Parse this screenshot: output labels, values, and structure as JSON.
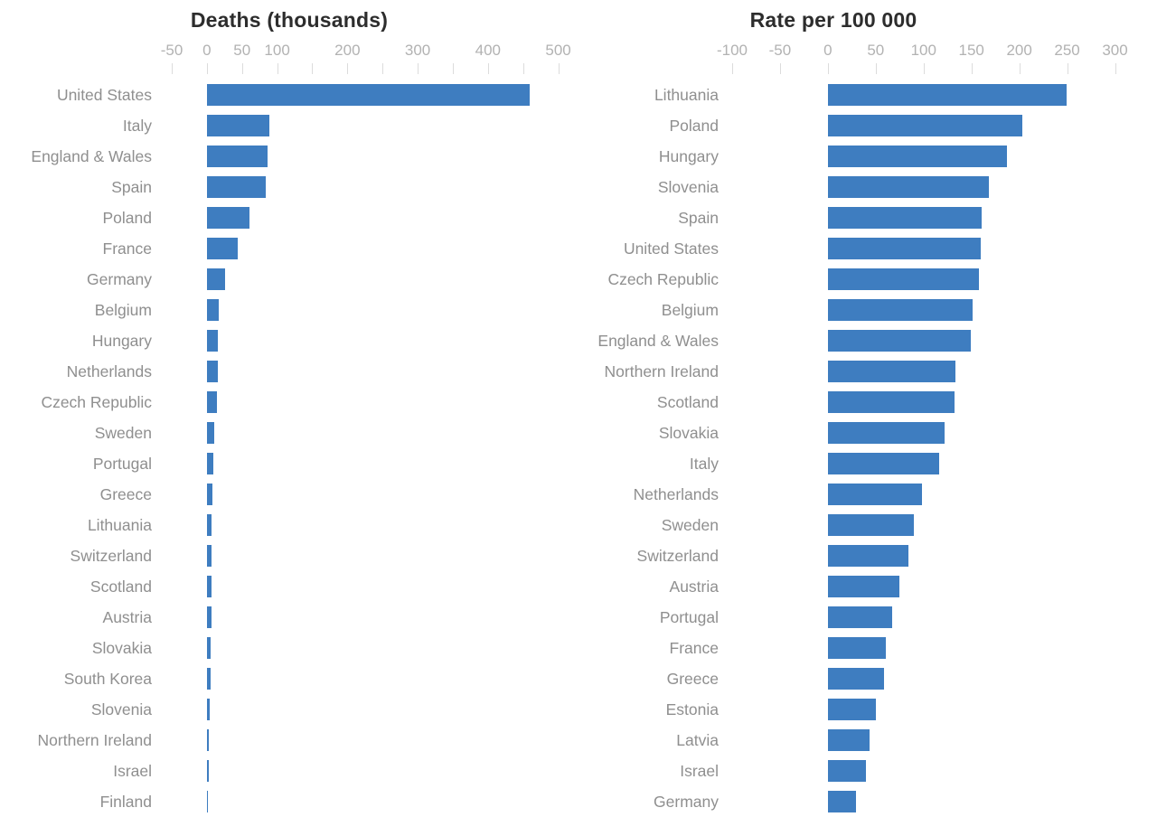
{
  "figure": {
    "background": "#ffffff",
    "text_color_title": "#2d2d2d",
    "text_color_labels": "#8f8f8f",
    "text_color_axis": "#b2b2b2",
    "tick_color": "#dcdcdc"
  },
  "chart_data": [
    {
      "type": "bar",
      "orientation": "horizontal",
      "title": "Deaths (thousands)",
      "xlabel": "",
      "ylabel": "",
      "bar_color": "#3e7dc0",
      "grid": false,
      "xlim": [
        -50,
        525
      ],
      "x_ticks": [
        -50,
        0,
        50,
        100,
        150,
        200,
        250,
        300,
        350,
        400,
        450,
        500
      ],
      "x_labeled_ticks": [
        -50,
        0,
        50,
        100,
        200,
        300,
        400,
        500
      ],
      "categories": [
        "United States",
        "Italy",
        "England & Wales",
        "Spain",
        "Poland",
        "France",
        "Germany",
        "Belgium",
        "Hungary",
        "Netherlands",
        "Czech Republic",
        "Sweden",
        "Portugal",
        "Greece",
        "Lithuania",
        "Switzerland",
        "Scotland",
        "Austria",
        "Slovakia",
        "South Korea",
        "Slovenia",
        "Northern Ireland",
        "Israel",
        "Finland"
      ],
      "values": [
        460,
        89,
        86,
        84,
        61,
        44,
        26,
        17.5,
        16.2,
        15.3,
        14.1,
        10.5,
        9,
        7.5,
        6.5,
        6.3,
        6.1,
        6,
        5.2,
        4.8,
        4,
        3.2,
        2.8,
        1.4
      ]
    },
    {
      "type": "bar",
      "orientation": "horizontal",
      "title": "Rate per 100 000",
      "xlabel": "",
      "ylabel": "",
      "bar_color": "#3e7dc0",
      "grid": false,
      "xlim": [
        -100,
        325
      ],
      "x_ticks": [
        -100,
        -50,
        0,
        50,
        100,
        150,
        200,
        250,
        300
      ],
      "x_labeled_ticks": [
        -100,
        -50,
        0,
        50,
        100,
        150,
        200,
        250,
        300
      ],
      "categories": [
        "Lithuania",
        "Poland",
        "Hungary",
        "Slovenia",
        "Spain",
        "United States",
        "Czech Republic",
        "Belgium",
        "England & Wales",
        "Northern Ireland",
        "Scotland",
        "Slovakia",
        "Italy",
        "Netherlands",
        "Sweden",
        "Switzerland",
        "Austria",
        "Portugal",
        "France",
        "Greece",
        "Estonia",
        "Latvia",
        "Israel",
        "Germany"
      ],
      "values": [
        249,
        203,
        187,
        168,
        161,
        160,
        158,
        151,
        149,
        133,
        132,
        122,
        116,
        98,
        90,
        84,
        75,
        67,
        61,
        59,
        50,
        44,
        40,
        29
      ]
    }
  ]
}
